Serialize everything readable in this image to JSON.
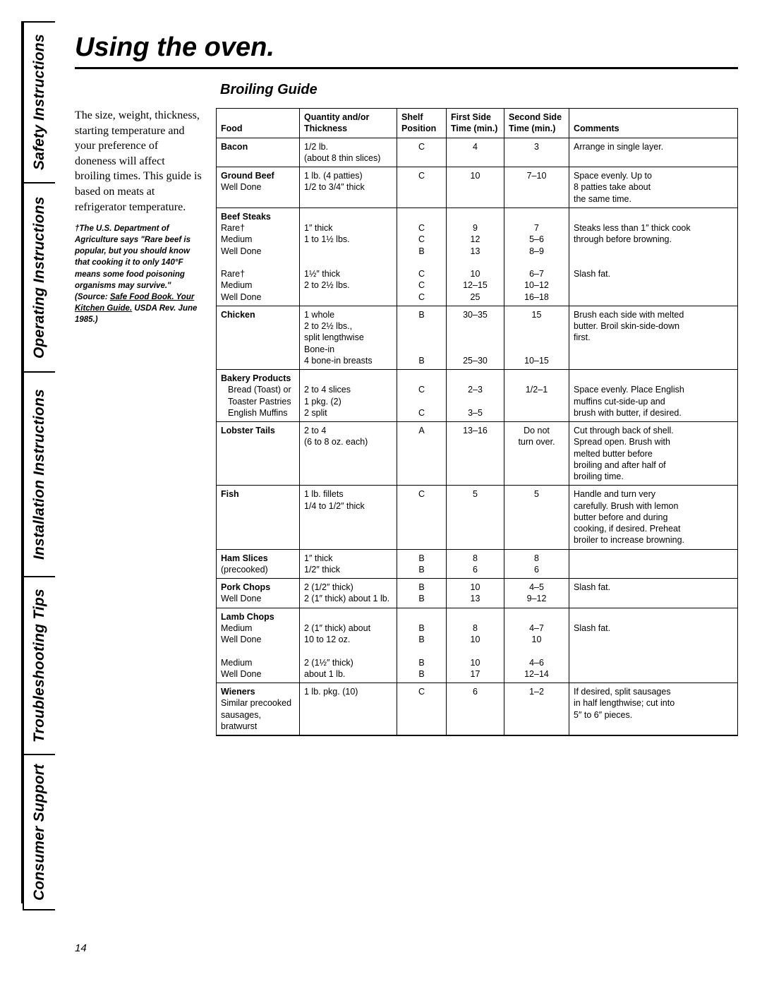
{
  "page_number": "14",
  "title": "Using the oven.",
  "section_title": "Broiling Guide",
  "tabs": [
    "Safety Instructions",
    "Operating Instructions",
    "Installation Instructions",
    "Troubleshooting Tips",
    "Consumer Support"
  ],
  "intro": "The size, weight, thickness, starting temperature and your preference of doneness will affect broiling times. This guide is based on meats at refrigerator temperature.",
  "footnote_pre": "†The U.S. Department of Agriculture says \"Rare beef is popular, but you should know that cooking it to only 140°F means some food poisoning organisms may survive.\" (Source: ",
  "footnote_link": "Safe Food Book. Your Kitchen Guide.",
  "footnote_post": " USDA Rev. June 1985.)",
  "headers": {
    "food": "Food",
    "qty1": "Quantity and/or",
    "qty2": "Thickness",
    "shelf1": "Shelf",
    "shelf2": "Position",
    "first1": "First Side",
    "first2": "Time (min.)",
    "second1": "Second Side",
    "second2": "Time (min.)",
    "comments": "Comments"
  },
  "rows": [
    {
      "food": [
        "Bacon"
      ],
      "bold": [
        true
      ],
      "qty": [
        "1/2 lb.",
        "(about 8 thin slices)"
      ],
      "shelf": [
        "C"
      ],
      "first": [
        "4"
      ],
      "second": [
        "3"
      ],
      "comments": [
        "Arrange in single layer."
      ]
    },
    {
      "food": [
        "Ground Beef",
        "Well Done"
      ],
      "bold": [
        true,
        false
      ],
      "qty": [
        "1 lb. (4 patties)",
        "1/2 to 3/4″ thick"
      ],
      "shelf": [
        "C"
      ],
      "first": [
        "10"
      ],
      "second": [
        "7–10"
      ],
      "comments": [
        "Space evenly. Up to",
        "8 patties take about",
        "the same time."
      ]
    },
    {
      "food": [
        "Beef Steaks",
        "Rare†",
        "Medium",
        "Well Done",
        "",
        "Rare†",
        "Medium",
        "Well Done"
      ],
      "bold": [
        true,
        false,
        false,
        false,
        false,
        false,
        false,
        false
      ],
      "qty": [
        "",
        "1″ thick",
        "1 to 1½ lbs.",
        "",
        "",
        "1½″ thick",
        "2 to 2½ lbs.",
        ""
      ],
      "shelf": [
        "",
        "C",
        "C",
        "B",
        "",
        "C",
        "C",
        "C"
      ],
      "first": [
        "",
        "9",
        "12",
        "13",
        "",
        "10",
        "12–15",
        "25"
      ],
      "second": [
        "",
        "7",
        "5–6",
        "8–9",
        "",
        "6–7",
        "10–12",
        "16–18"
      ],
      "comments": [
        "",
        "Steaks less than 1″ thick cook",
        "through before browning.",
        "",
        "",
        "Slash fat.",
        "",
        ""
      ]
    },
    {
      "food": [
        "Chicken",
        "",
        "",
        "",
        ""
      ],
      "bold": [
        true,
        false,
        false,
        false,
        false
      ],
      "qty": [
        "1 whole",
        "2 to 2½ lbs.,",
        "split lengthwise",
        "Bone-in",
        "4 bone-in breasts"
      ],
      "shelf": [
        "B",
        "",
        "",
        "",
        "B"
      ],
      "first": [
        "30–35",
        "",
        "",
        "",
        "25–30"
      ],
      "second": [
        "15",
        "",
        "",
        "",
        "10–15"
      ],
      "comments": [
        "Brush each side with melted",
        "butter. Broil skin-side-down",
        "first.",
        "",
        ""
      ]
    },
    {
      "food": [
        "Bakery Products",
        "Bread (Toast) or",
        "Toaster Pastries",
        "English Muffins"
      ],
      "bold": [
        true,
        false,
        false,
        false
      ],
      "indent": [
        false,
        true,
        true,
        true
      ],
      "qty": [
        "",
        "2 to 4 slices",
        "1 pkg. (2)",
        "2 split"
      ],
      "shelf": [
        "",
        "C",
        "",
        "C"
      ],
      "first": [
        "",
        "2–3",
        "",
        "3–5"
      ],
      "second": [
        "",
        "1/2–1",
        "",
        ""
      ],
      "comments": [
        "",
        "Space evenly. Place English",
        "muffins cut-side-up and",
        "brush with butter, if desired."
      ]
    },
    {
      "food": [
        "Lobster Tails"
      ],
      "bold": [
        true
      ],
      "qty": [
        "2 to 4",
        "(6 to 8 oz. each)",
        "",
        "",
        ""
      ],
      "shelf": [
        "A",
        "",
        "",
        "",
        ""
      ],
      "first": [
        "13–16",
        "",
        "",
        "",
        ""
      ],
      "second": [
        "Do not",
        "turn over.",
        "",
        "",
        ""
      ],
      "comments": [
        "Cut through back of shell.",
        "Spread open. Brush with",
        "melted butter before",
        "broiling and after half of",
        "broiling time."
      ]
    },
    {
      "food": [
        "Fish"
      ],
      "bold": [
        true
      ],
      "qty": [
        "1 lb. fillets",
        "1/4 to 1/2″ thick",
        "",
        "",
        ""
      ],
      "shelf": [
        "C",
        "",
        "",
        "",
        ""
      ],
      "first": [
        "5",
        "",
        "",
        "",
        ""
      ],
      "second": [
        "5",
        "",
        "",
        "",
        ""
      ],
      "comments": [
        "Handle and turn very",
        "carefully. Brush with lemon",
        "butter before and during",
        "cooking, if desired. Preheat",
        "broiler to increase browning."
      ]
    },
    {
      "food": [
        "Ham Slices",
        "(precooked)"
      ],
      "bold": [
        true,
        false
      ],
      "qty": [
        "1″ thick",
        "1/2″ thick"
      ],
      "shelf": [
        "B",
        "B"
      ],
      "first": [
        "8",
        "6"
      ],
      "second": [
        "8",
        "6"
      ],
      "comments": [
        "",
        ""
      ]
    },
    {
      "food": [
        "Pork Chops",
        "Well Done"
      ],
      "bold": [
        true,
        false
      ],
      "qty": [
        "2 (1/2″ thick)",
        "2 (1″ thick) about 1 lb."
      ],
      "shelf": [
        "B",
        "B"
      ],
      "first": [
        "10",
        "13"
      ],
      "second": [
        "4–5",
        "9–12"
      ],
      "comments": [
        "Slash fat.",
        ""
      ]
    },
    {
      "food": [
        "Lamb Chops",
        "Medium",
        "Well Done",
        "",
        "Medium",
        "Well Done"
      ],
      "bold": [
        true,
        false,
        false,
        false,
        false,
        false
      ],
      "qty": [
        "",
        "2 (1″ thick) about",
        "10 to 12 oz.",
        "",
        "2 (1½″ thick)",
        "about 1 lb."
      ],
      "shelf": [
        "",
        "B",
        "B",
        "",
        "B",
        "B"
      ],
      "first": [
        "",
        "8",
        "10",
        "",
        "10",
        "17"
      ],
      "second": [
        "",
        "4–7",
        "10",
        "",
        "4–6",
        "12–14"
      ],
      "comments": [
        "",
        "Slash fat.",
        "",
        "",
        "",
        ""
      ]
    },
    {
      "food": [
        "Wieners",
        "Similar precooked",
        "sausages,",
        "bratwurst"
      ],
      "bold": [
        true,
        false,
        false,
        false
      ],
      "qty": [
        "1 lb. pkg. (10)",
        "",
        "",
        ""
      ],
      "shelf": [
        "C",
        "",
        "",
        ""
      ],
      "first": [
        "6",
        "",
        "",
        ""
      ],
      "second": [
        "1–2",
        "",
        "",
        ""
      ],
      "comments": [
        "If desired, split sausages",
        "in half lengthwise; cut into",
        "5″ to 6″ pieces.",
        ""
      ]
    }
  ]
}
